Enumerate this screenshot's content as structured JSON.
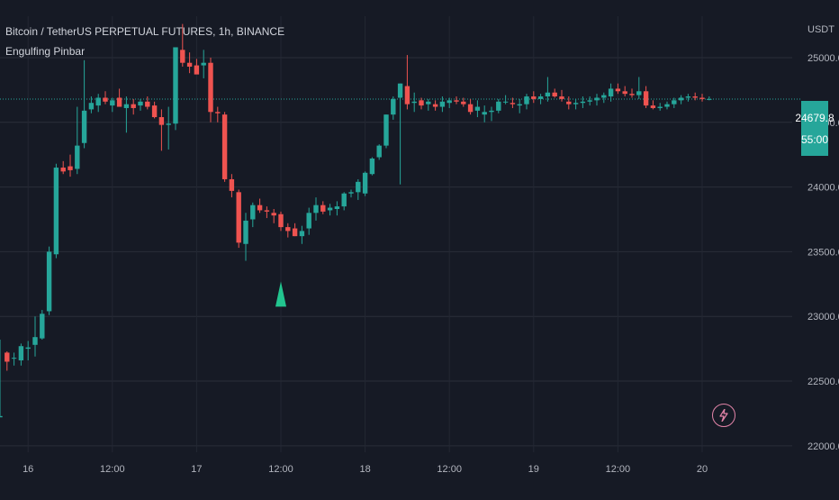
{
  "header": {
    "symbol_line": "Bitcoin / TetherUS PERPETUAL FUTURES, 1h, BINANCE",
    "indicator_name": "Engulfing Pinbar"
  },
  "price_axis": {
    "currency": "USDT"
  },
  "last_price": {
    "price": "24679.8",
    "countdown": "55:00"
  },
  "colors": {
    "up": "#26a69a",
    "down": "#ef5350",
    "signal": "#22c58f",
    "background": "#161a25"
  },
  "chart_data": {
    "type": "candlestick",
    "ylim": [
      21950,
      25320
    ],
    "y_ticks": [
      "22000.0",
      "22500.0",
      "23000.0",
      "23500.0",
      "24000.0",
      "24500.0",
      "25000.0"
    ],
    "x_tick_labels": [
      {
        "i": 4,
        "label": "16"
      },
      {
        "i": 16,
        "label": "12:00"
      },
      {
        "i": 28,
        "label": "17"
      },
      {
        "i": 40,
        "label": "12:00"
      },
      {
        "i": 52,
        "label": "18"
      },
      {
        "i": 64,
        "label": "12:00"
      },
      {
        "i": 76,
        "label": "19"
      },
      {
        "i": 88,
        "label": "12:00"
      },
      {
        "i": 100,
        "label": "20"
      }
    ],
    "last_price": 24679.8,
    "signals": [
      {
        "i": 40,
        "type": "buy",
        "price": 23270
      }
    ],
    "candles": [
      [
        22220,
        22230,
        22820,
        22230
      ],
      [
        22720,
        22580,
        22730,
        22650
      ],
      [
        22680,
        22620,
        22720,
        22680
      ],
      [
        22660,
        22620,
        22790,
        22770
      ],
      [
        22750,
        22660,
        22810,
        22760
      ],
      [
        22780,
        22690,
        23000,
        22840
      ],
      [
        22830,
        22820,
        23050,
        23020
      ],
      [
        23040,
        23010,
        23540,
        23500
      ],
      [
        23480,
        23450,
        24180,
        24150
      ],
      [
        24150,
        24100,
        24200,
        24120
      ],
      [
        24160,
        24080,
        24250,
        24130
      ],
      [
        24140,
        24100,
        24620,
        24320
      ],
      [
        24340,
        24300,
        24980,
        24590
      ],
      [
        24600,
        24570,
        24700,
        24650
      ],
      [
        24630,
        24580,
        24720,
        24690
      ],
      [
        24690,
        24640,
        24740,
        24660
      ],
      [
        24630,
        24580,
        24690,
        24670
      ],
      [
        24690,
        24640,
        24760,
        24620
      ],
      [
        24610,
        24420,
        24700,
        24640
      ],
      [
        24640,
        24560,
        24680,
        24610
      ],
      [
        24630,
        24590,
        24680,
        24660
      ],
      [
        24660,
        24600,
        24700,
        24620
      ],
      [
        24630,
        24530,
        24660,
        24540
      ],
      [
        24540,
        24280,
        24600,
        24480
      ],
      [
        24480,
        24290,
        24620,
        24490
      ],
      [
        24490,
        24440,
        25080,
        25080
      ],
      [
        25060,
        24930,
        25260,
        24960
      ],
      [
        24960,
        24880,
        25040,
        24930
      ],
      [
        24940,
        24880,
        24990,
        24870
      ],
      [
        24940,
        24840,
        25060,
        24960
      ],
      [
        24960,
        24500,
        25000,
        24580
      ],
      [
        24580,
        24500,
        24620,
        24570
      ],
      [
        24560,
        24040,
        24580,
        24060
      ],
      [
        24060,
        23920,
        24100,
        23970
      ],
      [
        23960,
        23530,
        23980,
        23570
      ],
      [
        23560,
        23430,
        23800,
        23740
      ],
      [
        23750,
        23690,
        23880,
        23860
      ],
      [
        23860,
        23800,
        23910,
        23820
      ],
      [
        23820,
        23760,
        23850,
        23810
      ],
      [
        23800,
        23720,
        23830,
        23780
      ],
      [
        23790,
        23660,
        23810,
        23690
      ],
      [
        23690,
        23610,
        23720,
        23660
      ],
      [
        23680,
        23620,
        23720,
        23620
      ],
      [
        23620,
        23560,
        23700,
        23660
      ],
      [
        23680,
        23630,
        23840,
        23800
      ],
      [
        23800,
        23740,
        23920,
        23860
      ],
      [
        23860,
        23790,
        23890,
        23810
      ],
      [
        23820,
        23780,
        23870,
        23840
      ],
      [
        23830,
        23780,
        23890,
        23850
      ],
      [
        23850,
        23820,
        23960,
        23950
      ],
      [
        23950,
        23920,
        23980,
        23960
      ],
      [
        23960,
        23900,
        24060,
        24040
      ],
      [
        23950,
        23930,
        24120,
        24110
      ],
      [
        24100,
        24090,
        24230,
        24220
      ],
      [
        24230,
        24210,
        24330,
        24320
      ],
      [
        24320,
        24300,
        24560,
        24560
      ],
      [
        24560,
        24520,
        24700,
        24680
      ],
      [
        24690,
        24020,
        24800,
        24800
      ],
      [
        24780,
        24600,
        25020,
        24640
      ],
      [
        24650,
        24580,
        24730,
        24660
      ],
      [
        24670,
        24600,
        24690,
        24630
      ],
      [
        24640,
        24590,
        24680,
        24660
      ],
      [
        24640,
        24590,
        24670,
        24620
      ],
      [
        24620,
        24580,
        24700,
        24660
      ],
      [
        24650,
        24610,
        24690,
        24670
      ],
      [
        24670,
        24640,
        24700,
        24660
      ],
      [
        24660,
        24620,
        24690,
        24640
      ],
      [
        24640,
        24560,
        24680,
        24580
      ],
      [
        24590,
        24540,
        24670,
        24620
      ],
      [
        24560,
        24500,
        24630,
        24580
      ],
      [
        24580,
        24510,
        24620,
        24590
      ],
      [
        24590,
        24570,
        24680,
        24660
      ],
      [
        24660,
        24640,
        24710,
        24660
      ],
      [
        24650,
        24610,
        24690,
        24640
      ],
      [
        24630,
        24570,
        24680,
        24640
      ],
      [
        24640,
        24600,
        24720,
        24700
      ],
      [
        24700,
        24650,
        24740,
        24680
      ],
      [
        24680,
        24640,
        24720,
        24700
      ],
      [
        24700,
        24660,
        24850,
        24730
      ],
      [
        24730,
        24690,
        24760,
        24700
      ],
      [
        24700,
        24660,
        24750,
        24680
      ],
      [
        24660,
        24600,
        24700,
        24640
      ],
      [
        24640,
        24600,
        24680,
        24650
      ],
      [
        24650,
        24610,
        24700,
        24660
      ],
      [
        24660,
        24630,
        24700,
        24670
      ],
      [
        24670,
        24630,
        24720,
        24690
      ],
      [
        24690,
        24650,
        24730,
        24710
      ],
      [
        24700,
        24660,
        24800,
        24760
      ],
      [
        24760,
        24720,
        24800,
        24740
      ],
      [
        24740,
        24700,
        24780,
        24720
      ],
      [
        24720,
        24690,
        24760,
        24710
      ],
      [
        24710,
        24680,
        24850,
        24740
      ],
      [
        24740,
        24610,
        24780,
        24630
      ],
      [
        24630,
        24600,
        24670,
        24610
      ],
      [
        24610,
        24590,
        24650,
        24620
      ],
      [
        24620,
        24600,
        24660,
        24640
      ],
      [
        24640,
        24610,
        24690,
        24670
      ],
      [
        24670,
        24640,
        24710,
        24690
      ],
      [
        24690,
        24660,
        24720,
        24700
      ],
      [
        24700,
        24670,
        24730,
        24690
      ],
      [
        24690,
        24660,
        24720,
        24680
      ],
      [
        24680,
        24670,
        24700,
        24680
      ]
    ]
  }
}
